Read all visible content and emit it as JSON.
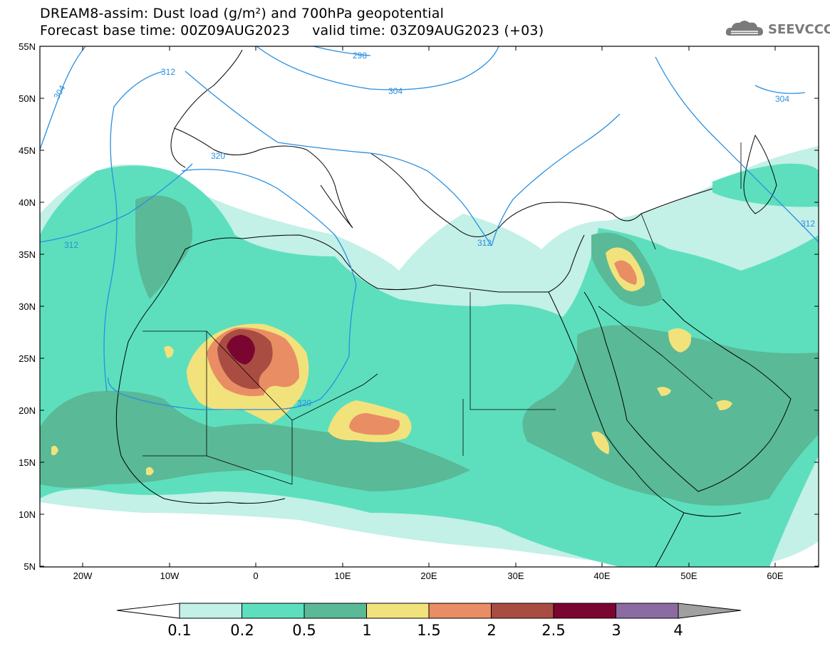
{
  "header": {
    "title_line1": "DREAM8-assim: Dust load (g/m²) and 700hPa geopotential",
    "title_line2": "Forecast base time: 00Z09AUG2023     valid time: 03Z09AUG2023 (+03)",
    "logo_text": "SEEVCCC"
  },
  "map": {
    "lat_labels": [
      "55N",
      "50N",
      "45N",
      "40N",
      "35N",
      "30N",
      "25N",
      "20N",
      "15N",
      "10N",
      "5N"
    ],
    "lon_labels": [
      "20W",
      "10W",
      "0",
      "10E",
      "20E",
      "30E",
      "40E",
      "50E",
      "60E"
    ],
    "isoline_labels": [
      "298",
      "304",
      "312",
      "304",
      "320",
      "312",
      "312",
      "304",
      "320",
      "312"
    ],
    "fill_colors": {
      "c01": "#c3f0e7",
      "c02": "#5ddfbd",
      "c05": "#5ab996",
      "c1": "#f2e27c",
      "c15": "#e98d65",
      "c2": "#a94d43",
      "c25": "#7b0531",
      "isoline": "#2a8fe0"
    }
  },
  "colorbar": {
    "labels": [
      "0.1",
      "0.2",
      "0.5",
      "1",
      "1.5",
      "2",
      "2.5",
      "3",
      "4"
    ],
    "colors": [
      "#c3f0e7",
      "#5ddfbd",
      "#5ab996",
      "#f2e27c",
      "#e98d65",
      "#a94d43",
      "#7b0531",
      "#8c6ba3"
    ],
    "over_color": "#a0a0a0",
    "under_color": "#ffffff"
  }
}
